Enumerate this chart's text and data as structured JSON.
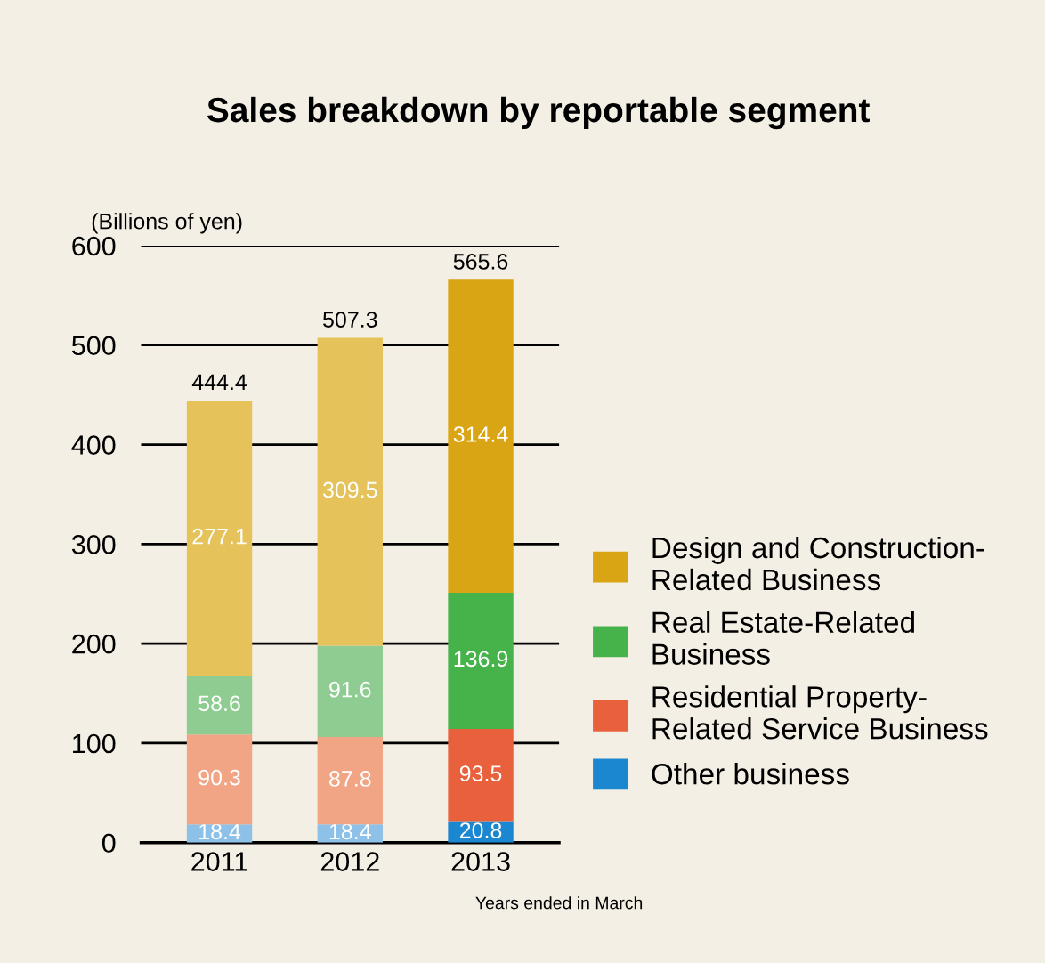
{
  "chart_data": {
    "type": "bar",
    "stacked": true,
    "title": "Sales breakdown by reportable segment",
    "ylabel": "(Billions of yen)",
    "xlabel": "Years ended in March",
    "categories": [
      "2011",
      "2012",
      "2013"
    ],
    "series": [
      {
        "name": "Other business",
        "color": "#1a87d0",
        "colors": [
          "#8ec1e8",
          "#8ec1e8",
          "#1a87d0"
        ],
        "values": [
          18.4,
          18.4,
          20.8
        ]
      },
      {
        "name": "Residential Property-\nRelated Service Business",
        "color": "#e8613c",
        "colors": [
          "#f2a585",
          "#f2a585",
          "#e8613c"
        ],
        "values": [
          90.3,
          87.8,
          93.5
        ]
      },
      {
        "name": "Real Estate-Related\nBusiness",
        "color": "#45b34a",
        "colors": [
          "#8fcc92",
          "#8fcc92",
          "#45b34a"
        ],
        "values": [
          58.6,
          91.6,
          136.9
        ]
      },
      {
        "name": "Design and Construction-\nRelated Business",
        "color": "#d9a514",
        "colors": [
          "#e6c25a",
          "#e6c25a",
          "#d9a514"
        ],
        "values": [
          277.1,
          309.5,
          314.4
        ]
      }
    ],
    "totals": [
      "444.4",
      "507.3",
      "565.6"
    ],
    "data_labels": true,
    "ylim": [
      0,
      600
    ],
    "yticks": [
      0,
      100,
      200,
      300,
      400,
      500,
      600
    ],
    "grid": "y",
    "legend": "right"
  }
}
